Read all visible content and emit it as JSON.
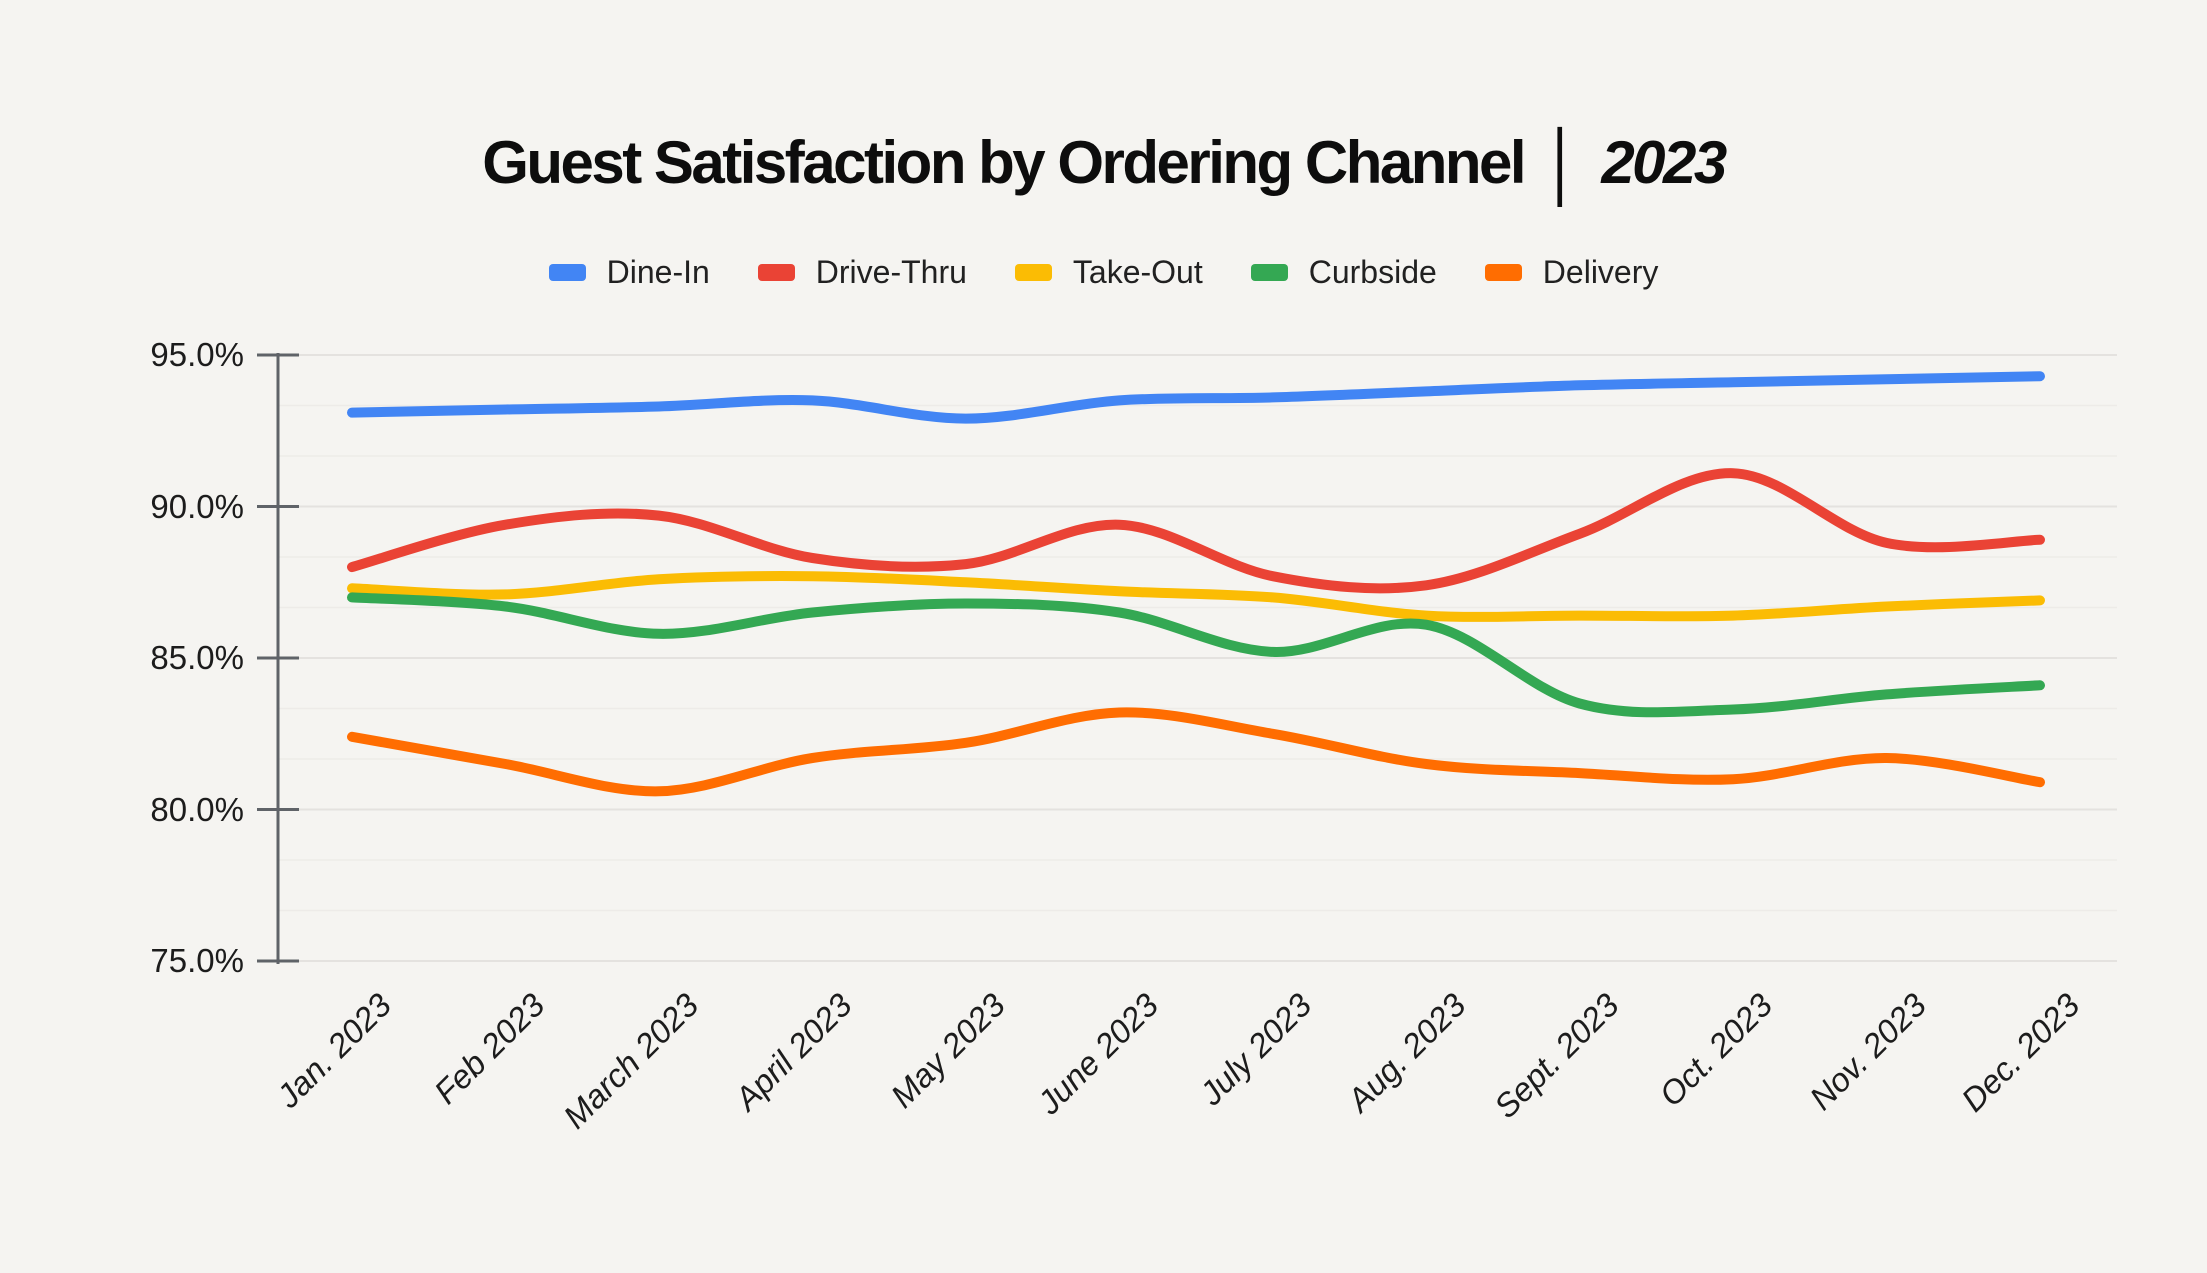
{
  "title": {
    "main": "Guest Satisfaction by Ordering Channel",
    "separator": "│",
    "year": "2023"
  },
  "colors": {
    "background": "#f5f4f1",
    "gridline_major": "#e4e2df",
    "gridline_minor": "#edebe8",
    "axis": "#5f6368",
    "text": "#1c1c1c",
    "title_text": "#0d0d0d"
  },
  "chart_data": {
    "type": "line",
    "title": "Guest Satisfaction by Ordering Channel | 2023",
    "x": [
      "Jan. 2023",
      "Feb 2023",
      "March 2023",
      "April 2023",
      "May 2023",
      "June 2023",
      "July 2023",
      "Aug. 2023",
      "Sept. 2023",
      "Oct. 2023",
      "Nov. 2023",
      "Dec. 2023"
    ],
    "series": [
      {
        "name": "Dine-In",
        "color": "#4285F4",
        "values": [
          93.1,
          93.2,
          93.3,
          93.5,
          92.9,
          93.5,
          93.6,
          93.8,
          94.0,
          94.1,
          94.2,
          94.3
        ]
      },
      {
        "name": "Drive-Thru",
        "color": "#EA4335",
        "values": [
          88.0,
          89.4,
          89.7,
          88.3,
          88.1,
          89.4,
          87.7,
          87.4,
          89.1,
          91.1,
          88.8,
          88.9
        ]
      },
      {
        "name": "Take-Out",
        "color": "#FBBC04",
        "values": [
          87.3,
          87.1,
          87.6,
          87.7,
          87.5,
          87.2,
          87.0,
          86.4,
          86.4,
          86.4,
          86.7,
          86.9
        ]
      },
      {
        "name": "Curbside",
        "color": "#34A853",
        "values": [
          87.0,
          86.7,
          85.8,
          86.5,
          86.8,
          86.5,
          85.2,
          86.1,
          83.5,
          83.3,
          83.8,
          84.1
        ]
      },
      {
        "name": "Delivery",
        "color": "#FF6D01",
        "values": [
          82.4,
          81.5,
          80.6,
          81.7,
          82.2,
          83.2,
          82.5,
          81.5,
          81.2,
          81.0,
          81.7,
          80.9
        ]
      }
    ],
    "ylim": [
      75,
      95
    ],
    "y_tick_values": [
      95,
      90,
      85,
      80,
      75
    ],
    "y_ticks": [
      "95.0%",
      "90.0%",
      "85.0%",
      "80.0%",
      "75.0%"
    ],
    "minor_gridlines_per_interval": 2,
    "grid": true,
    "legend_position": "top",
    "line_style": "smooth"
  }
}
